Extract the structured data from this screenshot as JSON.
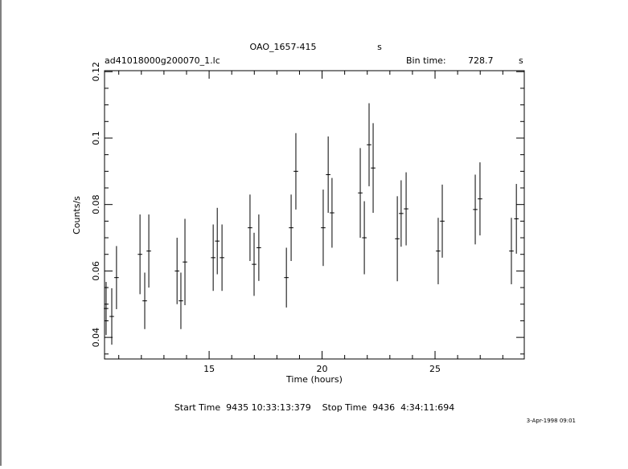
{
  "chart_data": {
    "type": "errorbar",
    "title": "OAO_1657-415",
    "title_unit": "s",
    "subtitle": "ad41018000g200070_1.lc",
    "bin_time_label": "Bin time:",
    "bin_time": "728.7",
    "bin_time_unit": "s",
    "xlabel": "Time (hours)",
    "ylabel": "Counts/s",
    "footer": "Start Time  9435 10:33:13:379    Stop Time  9436  4:34:11:694",
    "date": "3-Apr-1998 09:01",
    "xlim": [
      10.37,
      28.95
    ],
    "ylim": [
      0.0335,
      0.1203
    ],
    "xticks": [
      15,
      20,
      25
    ],
    "xminorticks": [
      11,
      12,
      13,
      14,
      16,
      17,
      18,
      19,
      21,
      22,
      23,
      24,
      26,
      27,
      28
    ],
    "yticks": [
      0.04,
      0.06,
      0.08,
      0.1,
      0.12
    ],
    "yminorticks": [
      0.035,
      0.045,
      0.05,
      0.055,
      0.065,
      0.07,
      0.075,
      0.085,
      0.09,
      0.095,
      0.105,
      0.11,
      0.115
    ],
    "xerr": 0.1,
    "series": [
      {
        "color": "#000000",
        "x": [
          10.44,
          10.69,
          10.9,
          11.94,
          12.15,
          12.33,
          13.58,
          13.75,
          13.93,
          15.18,
          15.36,
          15.57,
          16.81,
          16.99,
          17.2,
          18.42,
          18.63,
          18.84,
          20.05,
          20.27,
          20.44,
          21.69,
          21.87,
          22.08,
          22.26,
          23.33,
          23.5,
          23.72,
          25.14,
          25.32,
          26.78,
          26.99,
          28.38,
          28.6
        ],
        "values": [
          0.0487,
          0.0463,
          0.058,
          0.065,
          0.051,
          0.066,
          0.06,
          0.051,
          0.0627,
          0.064,
          0.069,
          0.064,
          0.073,
          0.062,
          0.067,
          0.058,
          0.073,
          0.09,
          0.073,
          0.089,
          0.0775,
          0.0835,
          0.07,
          0.098,
          0.091,
          0.0697,
          0.0773,
          0.0787,
          0.066,
          0.075,
          0.0785,
          0.0817,
          0.066,
          0.0757
        ],
        "errors": [
          0.008,
          0.0085,
          0.0095,
          0.012,
          0.0085,
          0.011,
          0.01,
          0.0085,
          0.013,
          0.01,
          0.01,
          0.01,
          0.01,
          0.0095,
          0.01,
          0.009,
          0.01,
          0.0115,
          0.0115,
          0.0115,
          0.0105,
          0.0135,
          0.011,
          0.0125,
          0.0135,
          0.0128,
          0.01,
          0.011,
          0.01,
          0.011,
          0.0105,
          0.011,
          0.01,
          0.0105
        ]
      }
    ]
  }
}
